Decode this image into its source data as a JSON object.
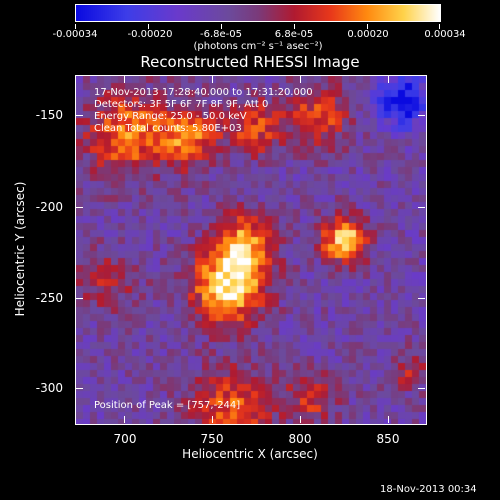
{
  "colorbar": {
    "tick_labels": [
      "-0.00034",
      "-0.00020",
      "-6.8e-05",
      "6.8e-05",
      "0.00020",
      "0.00034"
    ],
    "unit_label": "(photons cm⁻² s⁻¹ asec⁻²)",
    "range": [
      -0.00034,
      0.00034
    ]
  },
  "title": "Reconstructed RHESSI Image",
  "info": {
    "time_range": "17-Nov-2013 17:28:40.000 to 17:31:20.000",
    "detectors": "Detectors: 3F 5F 6F 7F 8F 9F, Att 0",
    "energy_range": "Energy Range: 25.0 - 50.0 keV",
    "method": "Clean     Total counts: 5.80E+03"
  },
  "peak_label": "Position of Peak = [757,-244]",
  "axes": {
    "xlabel": "Heliocentric X (arcsec)",
    "ylabel": "Heliocentric Y (arcsec)",
    "xlim": [
      672,
      868
    ],
    "ylim": [
      -320,
      -126
    ],
    "x_ticks": [
      "700",
      "750",
      "800",
      "850"
    ],
    "y_ticks": [
      "-150",
      "-200",
      "-250",
      "-300"
    ]
  },
  "image_sources": [
    {
      "x": 757,
      "y": -244,
      "sigma": 14,
      "amp": 1.0
    },
    {
      "x": 766,
      "y": -220,
      "sigma": 12,
      "amp": 0.75
    },
    {
      "x": 822,
      "y": -217,
      "sigma": 9,
      "amp": 0.95
    },
    {
      "x": 700,
      "y": -158,
      "sigma": 16,
      "amp": 0.7
    },
    {
      "x": 735,
      "y": -160,
      "sigma": 12,
      "amp": 0.65
    },
    {
      "x": 772,
      "y": -155,
      "sigma": 11,
      "amp": 0.55
    },
    {
      "x": 808,
      "y": -148,
      "sigma": 12,
      "amp": 0.55
    },
    {
      "x": 760,
      "y": -312,
      "sigma": 16,
      "amp": 0.6
    },
    {
      "x": 805,
      "y": -305,
      "sigma": 10,
      "amp": 0.45
    },
    {
      "x": 690,
      "y": -240,
      "sigma": 12,
      "amp": 0.35
    },
    {
      "x": 855,
      "y": -140,
      "sigma": 10,
      "amp": -0.8
    },
    {
      "x": 858,
      "y": -290,
      "sigma": 8,
      "amp": 0.35
    }
  ],
  "timestamp": "18-Nov-2013 00:34"
}
